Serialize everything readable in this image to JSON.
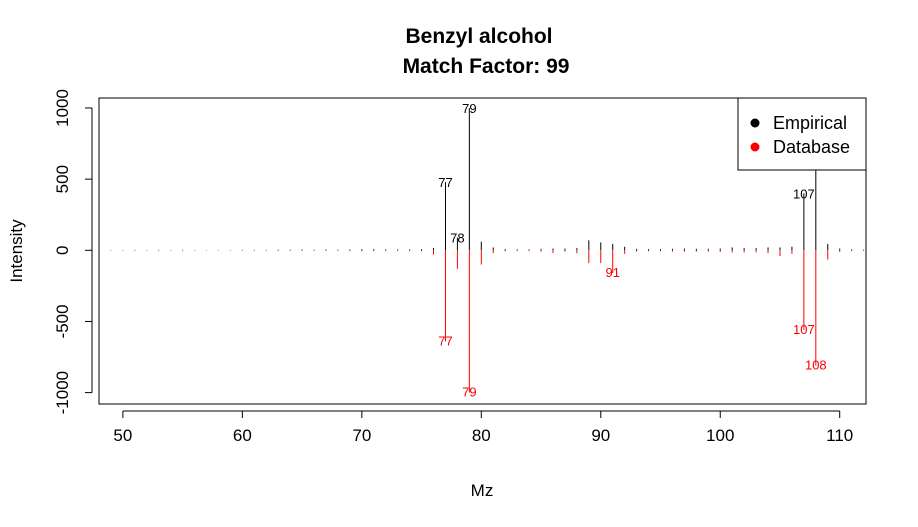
{
  "chart_data": {
    "type": "bar",
    "title": "Benzyl alcohol",
    "subtitle": "Match Factor: 99",
    "xlabel": "Mz",
    "ylabel": "Intensity",
    "xlim": [
      48,
      112.2
    ],
    "ylim": [
      -1080,
      1070
    ],
    "x_ticks": [
      50,
      60,
      70,
      80,
      90,
      100,
      110
    ],
    "y_ticks": [
      -1000,
      -500,
      0,
      500,
      1000
    ],
    "legend": {
      "placement": "top-right",
      "entries": [
        {
          "label": "Empirical",
          "color": "#000000"
        },
        {
          "label": "Database",
          "color": "#ff0000"
        }
      ]
    },
    "series": [
      {
        "name": "Empirical",
        "color": "#000000",
        "x": [
          49,
          50,
          51,
          52,
          53,
          54,
          55,
          56,
          57,
          58,
          59,
          60,
          61,
          62,
          63,
          64,
          65,
          66,
          67,
          68,
          69,
          70,
          71,
          72,
          73,
          74,
          75,
          76,
          77,
          78,
          79,
          80,
          81,
          82,
          83,
          84,
          85,
          86,
          87,
          88,
          89,
          90,
          91,
          92,
          93,
          94,
          95,
          96,
          97,
          98,
          99,
          100,
          101,
          102,
          103,
          104,
          105,
          106,
          107,
          108,
          109,
          110,
          111,
          112
        ],
        "y": [
          2,
          2,
          3,
          2,
          3,
          2,
          3,
          2,
          2,
          2,
          2,
          3,
          3,
          3,
          4,
          4,
          5,
          4,
          5,
          4,
          6,
          8,
          7,
          6,
          5,
          6,
          8,
          15,
          480,
          90,
          1000,
          60,
          20,
          8,
          6,
          6,
          10,
          12,
          12,
          15,
          70,
          55,
          45,
          25,
          10,
          8,
          8,
          10,
          12,
          10,
          10,
          12,
          20,
          15,
          15,
          20,
          20,
          25,
          400,
          910,
          45,
          12,
          6,
          4
        ]
      },
      {
        "name": "Database",
        "color": "#ff0000",
        "x": [
          49,
          50,
          51,
          52,
          53,
          54,
          55,
          56,
          57,
          58,
          59,
          60,
          61,
          62,
          63,
          64,
          65,
          66,
          67,
          68,
          69,
          70,
          71,
          72,
          73,
          74,
          75,
          76,
          77,
          78,
          79,
          80,
          81,
          82,
          83,
          84,
          85,
          86,
          87,
          88,
          89,
          90,
          91,
          92,
          93,
          94,
          95,
          96,
          97,
          98,
          99,
          100,
          101,
          102,
          103,
          104,
          105,
          106,
          107,
          108,
          109,
          110,
          111,
          112
        ],
        "y": [
          -2,
          -2,
          -3,
          -2,
          -3,
          -2,
          -3,
          -2,
          -2,
          -2,
          -2,
          -3,
          -3,
          -3,
          -4,
          -4,
          -5,
          -4,
          -5,
          -4,
          -6,
          -8,
          -7,
          -6,
          -5,
          -6,
          -8,
          -30,
          -640,
          -130,
          -1000,
          -100,
          -20,
          -8,
          -6,
          -6,
          -10,
          -20,
          -10,
          -20,
          -90,
          -90,
          -160,
          -25,
          -10,
          -8,
          -8,
          -10,
          -10,
          -10,
          -10,
          -12,
          -15,
          -15,
          -15,
          -20,
          -40,
          -25,
          -560,
          -810,
          -65,
          -12,
          -6,
          -4
        ]
      }
    ],
    "peak_labels": [
      {
        "series": "Empirical",
        "x": 77,
        "y": 480,
        "text": "77"
      },
      {
        "series": "Empirical",
        "x": 78,
        "y": 90,
        "text": "78"
      },
      {
        "series": "Empirical",
        "x": 79,
        "y": 1000,
        "text": "79"
      },
      {
        "series": "Empirical",
        "x": 107,
        "y": 400,
        "text": "107"
      },
      {
        "series": "Database",
        "x": 77,
        "y": -640,
        "text": "77"
      },
      {
        "series": "Database",
        "x": 79,
        "y": -1000,
        "text": "79"
      },
      {
        "series": "Database",
        "x": 91,
        "y": -160,
        "text": "91"
      },
      {
        "series": "Database",
        "x": 107,
        "y": -560,
        "text": "107"
      },
      {
        "series": "Database",
        "x": 108,
        "y": -810,
        "text": "108"
      }
    ]
  }
}
